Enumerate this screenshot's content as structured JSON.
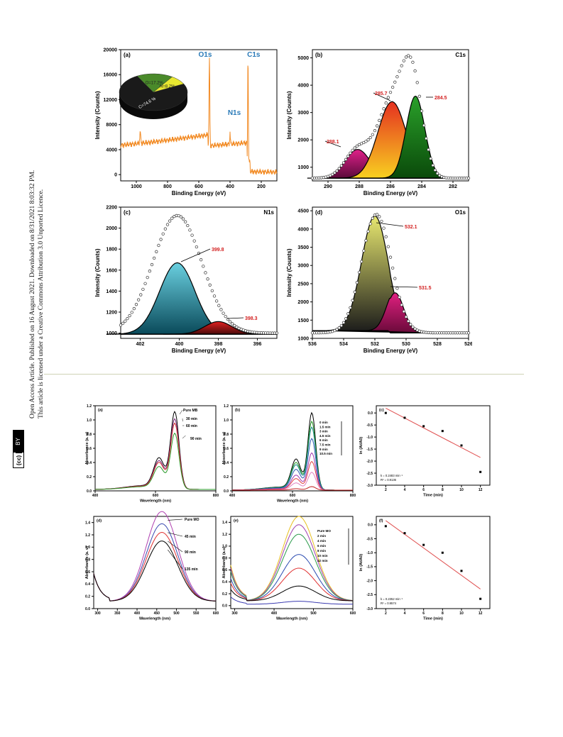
{
  "sidebar": {
    "line1": "Open Access Article. Published on 16 August 2021. Downloaded on 8/31/2021 8:03:32 PM.",
    "line2": "This article is licensed under a Creative Commons Attribution 3.0 Unported Licence.",
    "badge_cc": "(cc)",
    "badge_by": "BY"
  },
  "colors": {
    "orange": "#f28a23",
    "blue_label": "#2a7ab8",
    "red_label": "#d32020",
    "fit_red": "#e05050"
  },
  "chart_data": [
    {
      "panel": "(a)",
      "type": "line",
      "xlabel": "Binding Energy (eV)",
      "ylabel": "Intensity (Counts)",
      "xticks": [
        "1000",
        "800",
        "600",
        "400",
        "200"
      ],
      "yticks": [
        "0",
        "4000",
        "8000",
        "12000",
        "16000",
        "20000"
      ],
      "xlim": [
        1100,
        100
      ],
      "ylim": [
        -1000,
        20000
      ],
      "peaks": [
        {
          "label": "O1s",
          "x": 532
        },
        {
          "label": "N1s",
          "x": 400
        },
        {
          "label": "C1s",
          "x": 285
        }
      ],
      "pie": {
        "type": "pie",
        "slices": [
          {
            "label": "C=74.6 %",
            "value": 74.6
          },
          {
            "label": "O=17.2%",
            "value": 17.2
          },
          {
            "label": "N=8.2%",
            "value": 8.2
          }
        ]
      }
    },
    {
      "panel": "(b)",
      "type": "line",
      "element": "C1s",
      "xlabel": "Binding Energy (eV)",
      "ylabel": "Intensity (Counts)",
      "xticks": [
        "290",
        "288",
        "286",
        "284",
        "282"
      ],
      "yticks": [
        "1000",
        "2000",
        "3000",
        "4000",
        "5000"
      ],
      "xlim": [
        291,
        281
      ],
      "ylim": [
        500,
        5300
      ],
      "peak_labels": [
        {
          "label": "288.1",
          "x": 288.1
        },
        {
          "label": "285.7",
          "x": 285.7
        },
        {
          "label": "284.5",
          "x": 284.5
        }
      ]
    },
    {
      "panel": "(c)",
      "type": "line",
      "element": "N1s",
      "xlabel": "Binding Energy (eV)",
      "ylabel": "Intensity (Counts)",
      "xticks": [
        "402",
        "400",
        "398",
        "396"
      ],
      "yticks": [
        "1000",
        "1200",
        "1400",
        "1600",
        "1800",
        "2000",
        "2200"
      ],
      "xlim": [
        403,
        395
      ],
      "ylim": [
        950,
        2200
      ],
      "peak_labels": [
        {
          "label": "399.8",
          "x": 399.8
        },
        {
          "label": "398.3",
          "x": 398.3
        }
      ]
    },
    {
      "panel": "(d)",
      "type": "line",
      "element": "O1s",
      "xlabel": "Binding Energy (eV)",
      "ylabel": "Intensity (Counts)",
      "xticks": [
        "536",
        "534",
        "532",
        "530",
        "528",
        "526"
      ],
      "yticks": [
        "1000",
        "1500",
        "2000",
        "2500",
        "3000",
        "3500",
        "4000",
        "4500"
      ],
      "xlim": [
        536,
        526
      ],
      "ylim": [
        1000,
        4600
      ],
      "peak_labels": [
        {
          "label": "532.1",
          "x": 532.1
        },
        {
          "label": "531.5",
          "x": 531.5
        }
      ]
    },
    {
      "panel": "(a)",
      "type": "line",
      "xlabel": "Wavelength (nm)",
      "ylabel": "Absorbance (a. u)",
      "xticks": [
        "400",
        "600",
        "800"
      ],
      "yticks": [
        "0.0",
        "0.2",
        "0.4",
        "0.6",
        "0.8",
        "1.0",
        "1.2"
      ],
      "xlim": [
        400,
        800
      ],
      "ylim": [
        0,
        1.2
      ],
      "legend": [
        "Pure MB",
        "30 min",
        "60 min",
        "90 min"
      ]
    },
    {
      "panel": "(b)",
      "type": "line",
      "xlabel": "Wavelength (nm)",
      "ylabel": "Absorbance (a. u)",
      "xticks": [
        "400",
        "600",
        "800"
      ],
      "yticks": [
        "0.0",
        "0.2",
        "0.4",
        "0.6",
        "0.8",
        "1.0",
        "1.2"
      ],
      "xlim": [
        400,
        800
      ],
      "ylim": [
        0,
        1.2
      ],
      "legend": [
        "0 min",
        "1.5 min",
        "3 min",
        "4.5 min",
        "6 min",
        "7.5 min",
        "9 min",
        "10.5 min"
      ]
    },
    {
      "panel": "(c)",
      "type": "scatter",
      "xlabel": "Time (min)",
      "ylabel": "ln (At/A0)",
      "xticks": [
        "2",
        "4",
        "6",
        "8",
        "10",
        "12"
      ],
      "yticks": [
        "-3.0",
        "-2.5",
        "-2.0",
        "-1.5",
        "-1.0",
        "-0.5",
        "0.0"
      ],
      "xlim": [
        1,
        13
      ],
      "ylim": [
        -3.0,
        0.3
      ],
      "points": [
        [
          2,
          0.0
        ],
        [
          4,
          -0.2
        ],
        [
          6,
          -0.55
        ],
        [
          8,
          -0.75
        ],
        [
          10,
          -1.35
        ],
        [
          12,
          -2.45
        ]
      ],
      "fit": {
        "x": [
          2,
          12
        ],
        "y": [
          0.2,
          -1.85
        ]
      },
      "annotations": [
        "k = 0.2483 min⁻¹",
        "R² = 0.9136"
      ]
    },
    {
      "panel": "(d)",
      "type": "line",
      "xlabel": "Wavelength (nm)",
      "ylabel": "Absorbance (a. u)",
      "xticks": [
        "300",
        "350",
        "400",
        "450",
        "500",
        "550",
        "600"
      ],
      "yticks": [
        "0.0",
        "0.2",
        "0.4",
        "0.6",
        "0.8",
        "1.0",
        "1.2",
        "1.4"
      ],
      "xlim": [
        290,
        600
      ],
      "ylim": [
        0,
        1.5
      ],
      "legend": [
        "Pure MO",
        "45 min",
        "90 min",
        "135 min"
      ]
    },
    {
      "panel": "(e)",
      "type": "line",
      "xlabel": "Wavelength (nm)",
      "ylabel": "Absorbance (a.u)",
      "xticks": [
        "300",
        "400",
        "500",
        "600"
      ],
      "yticks": [
        "0.0",
        "0.2",
        "0.4",
        "0.6",
        "0.8",
        "1.0",
        "1.2",
        "1.4"
      ],
      "xlim": [
        290,
        600
      ],
      "ylim": [
        -0.05,
        1.5
      ],
      "legend": [
        "Pure MO",
        "2 min",
        "4 min",
        "6 min",
        "8 min",
        "10 min",
        "12 min"
      ]
    },
    {
      "panel": "(f)",
      "type": "scatter",
      "xlabel": "Time (min)",
      "ylabel": "ln (At/A0)",
      "xticks": [
        "2",
        "4",
        "6",
        "8",
        "10",
        "12"
      ],
      "yticks": [
        "-3.0",
        "-2.5",
        "-2.0",
        "-1.5",
        "-1.0",
        "-0.5",
        "0.0"
      ],
      "xlim": [
        1,
        13
      ],
      "ylim": [
        -3.0,
        0.3
      ],
      "points": [
        [
          2,
          -0.05
        ],
        [
          4,
          -0.3
        ],
        [
          6,
          -0.72
        ],
        [
          8,
          -1.0
        ],
        [
          10,
          -1.65
        ],
        [
          12,
          -2.65
        ]
      ],
      "fit": {
        "x": [
          2,
          12
        ],
        "y": [
          0.15,
          -2.3
        ]
      },
      "annotations": [
        "k = 0.2352 min⁻¹",
        "R² = 0.9574"
      ]
    }
  ]
}
